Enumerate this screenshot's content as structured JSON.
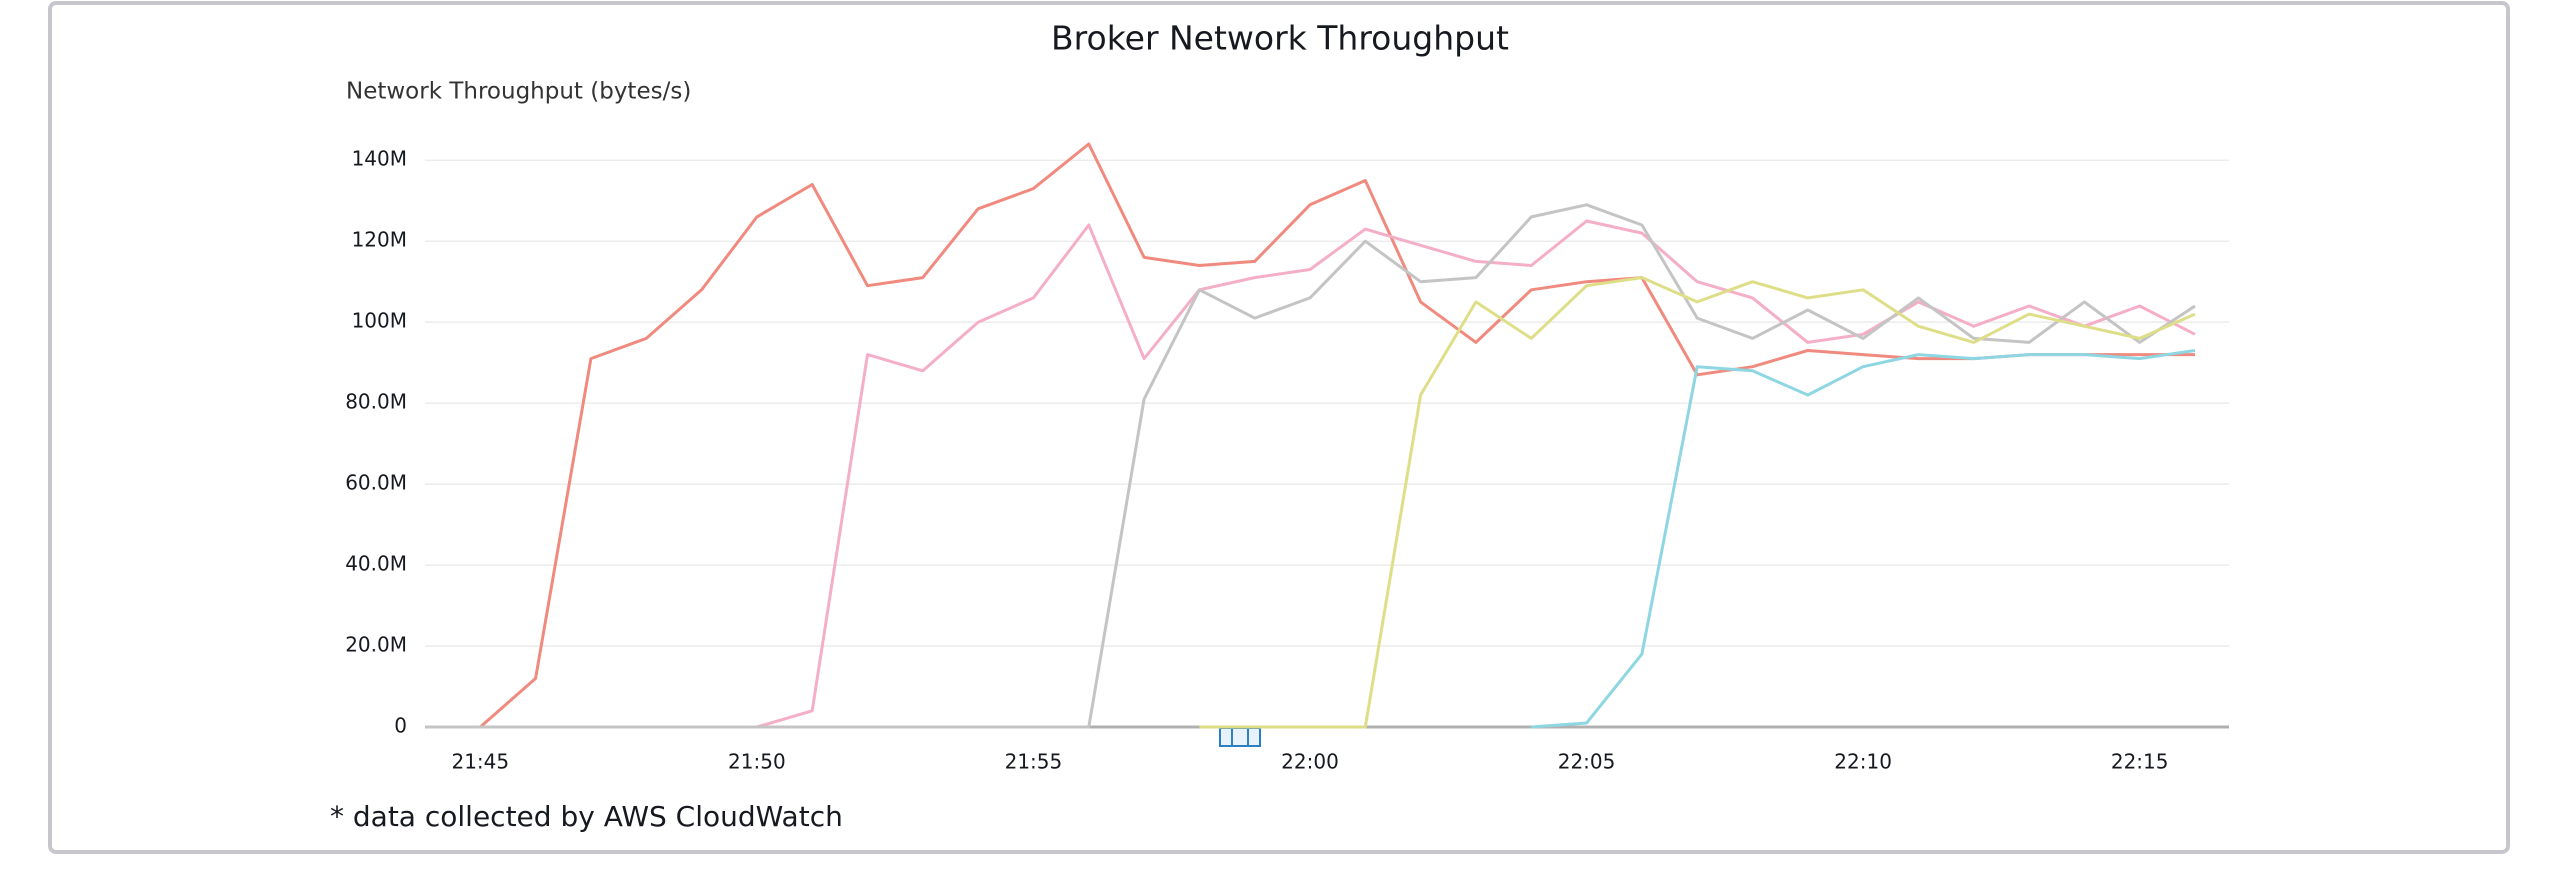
{
  "chart_data": {
    "type": "line",
    "title": "Broker Network Throughput",
    "y_label": "Network Throughput (bytes/s)",
    "footnote": "* data collected by AWS CloudWatch",
    "categories": [
      null,
      "21:45",
      null,
      null,
      null,
      null,
      "21:50",
      null,
      null,
      null,
      null,
      "21:55",
      null,
      null,
      null,
      null,
      "22:00",
      null,
      null,
      null,
      null,
      "22:05",
      null,
      null,
      null,
      null,
      "22:10",
      null,
      null,
      null,
      null,
      "22:15",
      null
    ],
    "series": [
      {
        "color": "#f08a7e",
        "values": [
          0,
          0,
          12000000,
          91000000,
          96000000,
          108000000,
          126000000,
          134000000,
          109000000,
          111000000,
          128000000,
          133000000,
          144000000,
          116000000,
          114000000,
          115000000,
          129000000,
          135000000,
          105000000,
          95000000,
          108000000,
          110000000,
          111000000,
          87000000,
          89000000,
          93000000,
          92000000,
          91000000,
          91000000,
          92000000,
          92000000,
          92000000,
          92000000
        ]
      },
      {
        "color": "#f5aec8",
        "values": [
          0,
          0,
          0,
          0,
          0,
          0,
          0,
          4000000,
          92000000,
          88000000,
          100000000,
          106000000,
          124000000,
          91000000,
          108000000,
          111000000,
          113000000,
          123000000,
          119000000,
          115000000,
          114000000,
          125000000,
          122000000,
          110000000,
          106000000,
          95000000,
          97000000,
          105000000,
          99000000,
          104000000,
          99000000,
          104000000,
          97000000
        ]
      },
      {
        "color": "#c4c4c4",
        "values": [
          0,
          0,
          0,
          0,
          0,
          0,
          0,
          0,
          0,
          0,
          0,
          0,
          0,
          81000000,
          108000000,
          101000000,
          106000000,
          120000000,
          110000000,
          111000000,
          126000000,
          129000000,
          124000000,
          101000000,
          96000000,
          103000000,
          96000000,
          106000000,
          96000000,
          95000000,
          105000000,
          95000000,
          104000000
        ]
      },
      {
        "color": "#dede88",
        "values": [
          null,
          null,
          null,
          null,
          null,
          null,
          null,
          null,
          null,
          null,
          null,
          null,
          null,
          null,
          0,
          0,
          0,
          0,
          82000000,
          105000000,
          96000000,
          109000000,
          111000000,
          105000000,
          110000000,
          106000000,
          108000000,
          99000000,
          95000000,
          102000000,
          99000000,
          96000000,
          102000000
        ]
      },
      {
        "color": "#8fd6e3",
        "values": [
          null,
          null,
          null,
          null,
          null,
          null,
          null,
          null,
          null,
          null,
          null,
          null,
          null,
          null,
          null,
          null,
          null,
          null,
          null,
          null,
          0,
          1000000,
          18000000,
          89000000,
          88000000,
          82000000,
          89000000,
          92000000,
          91000000,
          92000000,
          92000000,
          91000000,
          93000000
        ]
      }
    ],
    "ylim": [
      0,
      145000000
    ],
    "yticks": [
      0,
      {
        "value": 20000000,
        "label": "20.0M"
      },
      {
        "value": 40000000,
        "label": "40.0M"
      },
      {
        "value": 60000000,
        "label": "60.0M"
      },
      {
        "value": 80000000,
        "label": "80.0M"
      },
      {
        "value": 100000000,
        "label": "100M"
      },
      {
        "value": 120000000,
        "label": "120M"
      },
      {
        "value": 140000000,
        "label": "140M"
      }
    ],
    "grid": true
  }
}
